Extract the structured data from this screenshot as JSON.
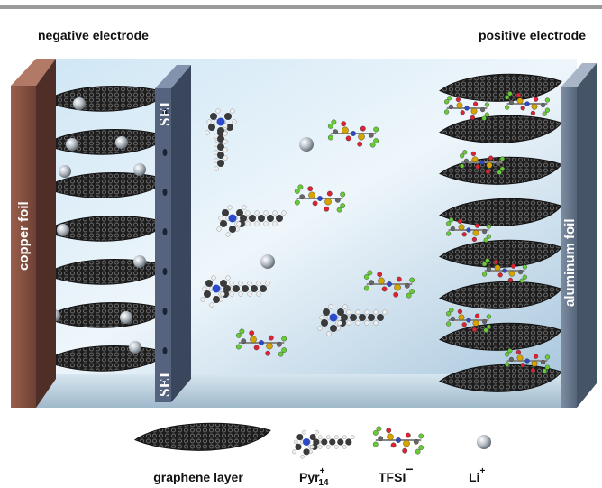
{
  "header": {
    "left_label": "negative electrode",
    "right_label": "positive electrode"
  },
  "labels": {
    "copper_foil": "copper foil",
    "aluminum_foil": "aluminum foil",
    "sei_top": "SEI",
    "sei_bottom": "SEI"
  },
  "legend": [
    {
      "label": "graphene layer"
    },
    {
      "label": "Pyr",
      "superscript": "+",
      "subscript": "14"
    },
    {
      "label": "TFSI",
      "superscript": "−"
    },
    {
      "label": "Li",
      "superscript": "+"
    }
  ]
}
